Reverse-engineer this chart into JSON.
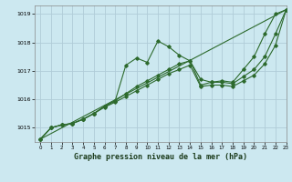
{
  "title": "Graphe pression niveau de la mer (hPa)",
  "bg_color": "#cce8f0",
  "grid_color": "#b0ccd8",
  "line_color": "#2d6a2d",
  "xlim": [
    -0.5,
    23
  ],
  "ylim": [
    1014.5,
    1019.3
  ],
  "yticks": [
    1015,
    1016,
    1017,
    1018,
    1019
  ],
  "xticks": [
    0,
    1,
    2,
    3,
    4,
    5,
    6,
    7,
    8,
    9,
    10,
    11,
    12,
    13,
    14,
    15,
    16,
    17,
    18,
    19,
    20,
    21,
    22,
    23
  ],
  "series": [
    {
      "x": [
        0,
        1,
        2,
        3,
        4,
        5,
        6,
        7,
        8,
        9,
        10,
        11,
        12,
        13,
        14,
        15,
        16,
        17,
        18,
        19,
        20,
        21,
        22,
        23
      ],
      "y": [
        1014.6,
        1015.0,
        1015.1,
        1015.15,
        1015.3,
        1015.5,
        1015.75,
        1015.95,
        1017.2,
        1017.45,
        1017.3,
        1018.05,
        1017.85,
        1017.55,
        1017.35,
        1016.7,
        1016.6,
        1016.65,
        1016.6,
        1017.05,
        1017.5,
        1018.3,
        1019.0,
        1019.15
      ],
      "has_marker": true
    },
    {
      "x": [
        0,
        1,
        2,
        3,
        4,
        5,
        6,
        7,
        8,
        9,
        10,
        11,
        12,
        13,
        14,
        15,
        16,
        17,
        18,
        19,
        20,
        21,
        22,
        23
      ],
      "y": [
        1014.6,
        1015.0,
        1015.1,
        1015.15,
        1015.3,
        1015.5,
        1015.75,
        1015.95,
        1016.2,
        1016.45,
        1016.65,
        1016.85,
        1017.05,
        1017.25,
        1017.35,
        1016.5,
        1016.6,
        1016.6,
        1016.55,
        1016.8,
        1017.05,
        1017.5,
        1018.3,
        1019.15
      ],
      "has_marker": true
    },
    {
      "x": [
        0,
        23
      ],
      "y": [
        1014.6,
        1019.15
      ],
      "has_marker": false
    },
    {
      "x": [
        0,
        1,
        2,
        3,
        4,
        5,
        6,
        7,
        8,
        9,
        10,
        11,
        12,
        13,
        14,
        15,
        16,
        17,
        18,
        19,
        20,
        21,
        22,
        23
      ],
      "y": [
        1014.6,
        1015.0,
        1015.1,
        1015.15,
        1015.3,
        1015.5,
        1015.72,
        1015.9,
        1016.1,
        1016.3,
        1016.5,
        1016.7,
        1016.9,
        1017.05,
        1017.2,
        1016.45,
        1016.5,
        1016.5,
        1016.45,
        1016.65,
        1016.85,
        1017.25,
        1017.9,
        1019.15
      ],
      "has_marker": true
    }
  ]
}
